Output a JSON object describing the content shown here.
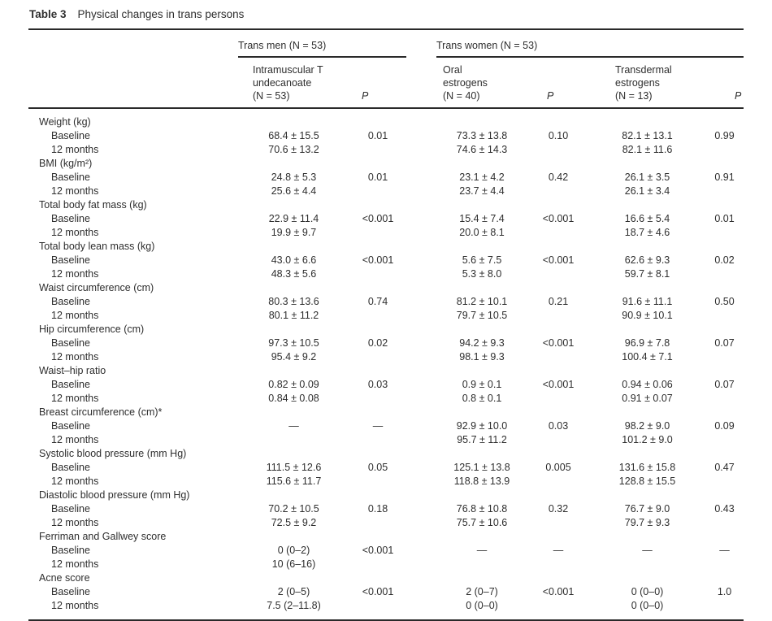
{
  "colors": {
    "text": "#2e2e2e",
    "rule": "#2a2a2a",
    "background": "#ffffff"
  },
  "table": {
    "label": "Table 3",
    "title": "Physical changes in trans persons",
    "groups": [
      {
        "label": "Trans men (N = 53)"
      },
      {
        "label": "Trans women (N = 53)"
      }
    ],
    "columns": [
      {
        "header": "Intramuscular T\nundecanoate\n(N = 53)",
        "p": "P"
      },
      {
        "header": "Oral\nestrogens\n(N = 40)",
        "p": "P"
      },
      {
        "header": "Transdermal\nestrogens\n(N = 13)",
        "p": "P"
      }
    ],
    "rows": [
      {
        "type": "section",
        "label": "Weight (kg)"
      },
      {
        "type": "data",
        "label": "Baseline",
        "cells": [
          "68.4 ± 15.5",
          "0.01",
          "73.3 ± 13.8",
          "0.10",
          "82.1 ± 13.1",
          "0.99"
        ]
      },
      {
        "type": "data",
        "label": "12 months",
        "cells": [
          "70.6 ± 13.2",
          "",
          "74.6 ± 14.3",
          "",
          "82.1 ± 11.6",
          ""
        ]
      },
      {
        "type": "section",
        "label": "BMI (kg/m²)"
      },
      {
        "type": "data",
        "label": "Baseline",
        "cells": [
          "24.8 ± 5.3",
          "0.01",
          "23.1 ± 4.2",
          "0.42",
          "26.1 ± 3.5",
          "0.91"
        ]
      },
      {
        "type": "data",
        "label": "12 months",
        "cells": [
          "25.6 ± 4.4",
          "",
          "23.7 ± 4.4",
          "",
          "26.1 ± 3.4",
          ""
        ]
      },
      {
        "type": "section",
        "label": "Total body fat mass (kg)"
      },
      {
        "type": "data",
        "label": "Baseline",
        "cells": [
          "22.9 ± 11.4",
          "<0.001",
          "15.4 ± 7.4",
          "<0.001",
          "16.6 ± 5.4",
          "0.01"
        ]
      },
      {
        "type": "data",
        "label": "12 months",
        "cells": [
          "19.9 ± 9.7",
          "",
          "20.0 ± 8.1",
          "",
          "18.7 ± 4.6",
          ""
        ]
      },
      {
        "type": "section",
        "label": "Total body lean mass (kg)"
      },
      {
        "type": "data",
        "label": "Baseline",
        "cells": [
          "43.0 ± 6.6",
          "<0.001",
          "5.6 ± 7.5",
          "<0.001",
          "62.6 ± 9.3",
          "0.02"
        ]
      },
      {
        "type": "data",
        "label": "12 months",
        "cells": [
          "48.3 ± 5.6",
          "",
          "5.3 ± 8.0",
          "",
          "59.7 ± 8.1",
          ""
        ]
      },
      {
        "type": "section",
        "label": "Waist circumference (cm)"
      },
      {
        "type": "data",
        "label": "Baseline",
        "cells": [
          "80.3 ± 13.6",
          "0.74",
          "81.2 ± 10.1",
          "0.21",
          "91.6 ± 11.1",
          "0.50"
        ]
      },
      {
        "type": "data",
        "label": "12 months",
        "cells": [
          "80.1 ± 11.2",
          "",
          "79.7 ± 10.5",
          "",
          "90.9 ± 10.1",
          ""
        ]
      },
      {
        "type": "section",
        "label": "Hip circumference (cm)"
      },
      {
        "type": "data",
        "label": "Baseline",
        "cells": [
          "97.3 ± 10.5",
          "0.02",
          "94.2 ± 9.3",
          "<0.001",
          "96.9 ± 7.8",
          "0.07"
        ]
      },
      {
        "type": "data",
        "label": "12 months",
        "cells": [
          "95.4 ± 9.2",
          "",
          "98.1 ± 9.3",
          "",
          "100.4 ± 7.1",
          ""
        ]
      },
      {
        "type": "section",
        "label": "Waist–hip ratio"
      },
      {
        "type": "data",
        "label": "Baseline",
        "cells": [
          "0.82 ± 0.09",
          "0.03",
          "0.9 ± 0.1",
          "<0.001",
          "0.94 ± 0.06",
          "0.07"
        ]
      },
      {
        "type": "data",
        "label": "12 months",
        "cells": [
          "0.84 ± 0.08",
          "",
          "0.8 ± 0.1",
          "",
          "0.91 ± 0.07",
          ""
        ]
      },
      {
        "type": "section",
        "label": "Breast circumference (cm)*"
      },
      {
        "type": "data",
        "label": "Baseline",
        "cells": [
          "—",
          "—",
          "92.9 ± 10.0",
          "0.03",
          "98.2 ± 9.0",
          "0.09"
        ]
      },
      {
        "type": "data",
        "label": "12 months",
        "cells": [
          "",
          "",
          "95.7 ± 11.2",
          "",
          "101.2 ± 9.0",
          ""
        ]
      },
      {
        "type": "section",
        "label": "Systolic blood pressure (mm Hg)"
      },
      {
        "type": "data",
        "label": "Baseline",
        "cells": [
          "111.5 ± 12.6",
          "0.05",
          "125.1 ± 13.8",
          "0.005",
          "131.6 ± 15.8",
          "0.47"
        ]
      },
      {
        "type": "data",
        "label": "12 months",
        "cells": [
          "115.6 ± 11.7",
          "",
          "118.8 ± 13.9",
          "",
          "128.8 ± 15.5",
          ""
        ]
      },
      {
        "type": "section",
        "label": "Diastolic blood pressure (mm Hg)"
      },
      {
        "type": "data",
        "label": "Baseline",
        "cells": [
          "70.2 ± 10.5",
          "0.18",
          "76.8 ± 10.8",
          "0.32",
          "76.7 ± 9.0",
          "0.43"
        ]
      },
      {
        "type": "data",
        "label": "12 months",
        "cells": [
          "72.5 ± 9.2",
          "",
          "75.7 ± 10.6",
          "",
          "79.7 ± 9.3",
          ""
        ]
      },
      {
        "type": "section",
        "label": "Ferriman and Gallwey score"
      },
      {
        "type": "data",
        "label": "Baseline",
        "cells": [
          "0 (0–2)",
          "<0.001",
          "—",
          "—",
          "—",
          "—"
        ]
      },
      {
        "type": "data",
        "label": "12 months",
        "cells": [
          "10 (6–16)",
          "",
          "",
          "",
          "",
          ""
        ]
      },
      {
        "type": "section",
        "label": "Acne score"
      },
      {
        "type": "data",
        "label": "Baseline",
        "cells": [
          "2 (0–5)",
          "<0.001",
          "2 (0–7)",
          "<0.001",
          "0 (0–0)",
          "1.0"
        ]
      },
      {
        "type": "data",
        "label": "12 months",
        "cells": [
          "7.5 (2–11.8)",
          "",
          "0 (0–0)",
          "",
          "0 (0–0)",
          ""
        ]
      }
    ]
  }
}
